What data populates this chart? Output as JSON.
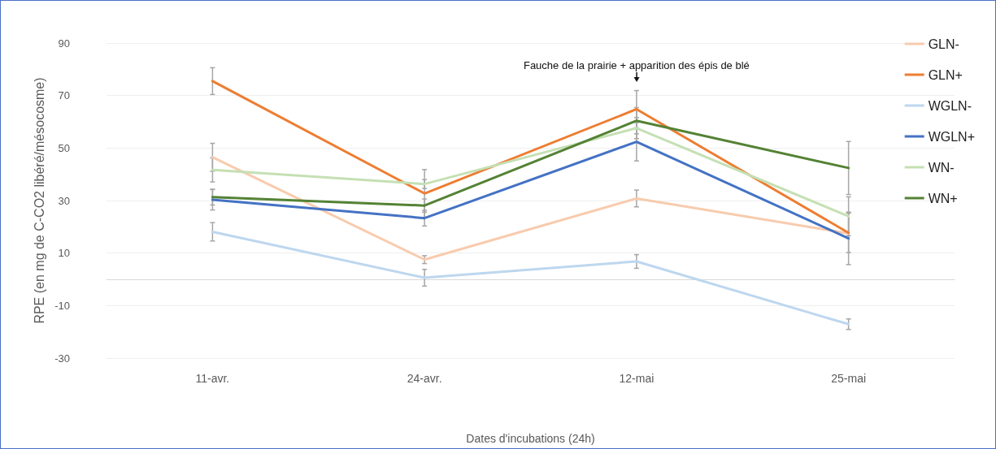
{
  "chart_data": {
    "type": "line",
    "xlabel": "Dates d'incubations (24h)",
    "ylabel": "RPE (en mg de C-CO2 libéré/mésocosme)",
    "categories": [
      "11-avr.",
      "24-avr.",
      "12-mai",
      "25-mai"
    ],
    "series": [
      {
        "name": "GLN-",
        "color": "#f8cbad",
        "values": [
          46.5,
          7.5,
          30.8,
          17.5
        ],
        "errors": [
          5.3,
          1.5,
          3.2,
          null
        ]
      },
      {
        "name": "GLN+",
        "color": "#ed7d31",
        "values": [
          75.5,
          32.7,
          64.8,
          17.7
        ],
        "errors": [
          5.1,
          9.1,
          7.1,
          7.5
        ]
      },
      {
        "name": "WGLN-",
        "color": "#bdd7ee",
        "values": [
          18.1,
          0.6,
          6.8,
          -17.1
        ],
        "errors": [
          3.5,
          3.2,
          2.6,
          2
        ]
      },
      {
        "name": "WGLN+",
        "color": "#4472c4",
        "values": [
          30.3,
          23.3,
          52.4,
          15.6
        ],
        "errors": [
          3.9,
          3,
          7.3,
          10
        ]
      },
      {
        "name": "WN-",
        "color": "#c5e0b4",
        "values": [
          41.7,
          36.3,
          57.6,
          24
        ],
        "errors": [
          4.6,
          1.7,
          4,
          7.4
        ]
      },
      {
        "name": "WN+",
        "color": "#548235",
        "values": [
          31.3,
          28.1,
          60.4,
          42.4
        ],
        "errors": [
          3,
          2.5,
          5,
          10.1
        ]
      }
    ],
    "annotations": [
      "Fauche de la prairie + apparition des épis de blé"
    ],
    "ylim": [
      -30,
      90
    ],
    "yticks": [
      -30,
      -10,
      10,
      30,
      50,
      70,
      90
    ],
    "grid": "y",
    "legend": "right",
    "marker": "none",
    "line_style": "solid"
  }
}
